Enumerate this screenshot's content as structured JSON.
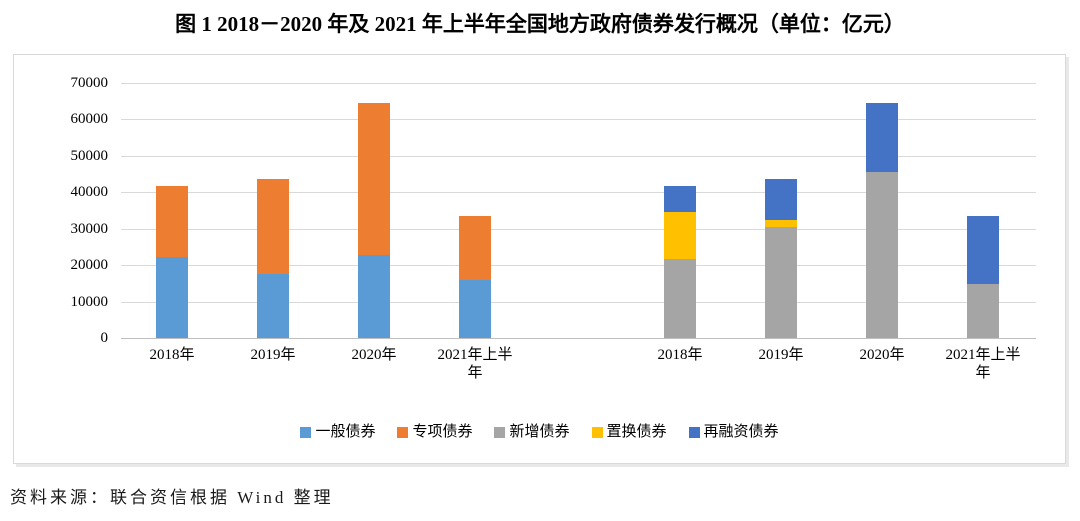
{
  "title": "图 1   2018－2020 年及 2021 年上半年全国地方政府债券发行概况（单位：亿元）",
  "source": "资料来源：联合资信根据 Wind 整理",
  "chart_data": {
    "type": "bar",
    "stacked": true,
    "unit": "亿元",
    "title": "2018－2020 年及 2021 年上半年全国地方政府债券发行概况",
    "xlabel": "",
    "ylabel": "",
    "ylim": [
      0,
      70000
    ],
    "yticks": [
      0,
      10000,
      20000,
      30000,
      40000,
      50000,
      60000,
      70000
    ],
    "grid": true,
    "legend_position": "bottom",
    "categories": [
      "2018年",
      "2019年",
      "2020年",
      "2021年上半年"
    ],
    "groups": [
      {
        "series": [
          {
            "name": "一般债券",
            "color": "#5B9BD5",
            "values": [
              22200,
              17700,
              22900,
              15800
            ]
          },
          {
            "name": "专项债券",
            "color": "#ED7D31",
            "values": [
              19500,
              25900,
              41500,
              17600
            ]
          }
        ]
      },
      {
        "series": [
          {
            "name": "新增债券",
            "color": "#A5A5A5",
            "values": [
              21800,
              30500,
              45600,
              14800
            ]
          },
          {
            "name": "置换债券",
            "color": "#FFC000",
            "values": [
              12900,
              1800,
              0,
              0
            ]
          },
          {
            "name": "再融资债券",
            "color": "#4472C4",
            "values": [
              7000,
              11300,
              18800,
              18600
            ]
          }
        ]
      }
    ],
    "legend": [
      {
        "label": "一般债券",
        "color": "#5B9BD5"
      },
      {
        "label": "专项债券",
        "color": "#ED7D31"
      },
      {
        "label": "新增债券",
        "color": "#A5A5A5"
      },
      {
        "label": "置换债券",
        "color": "#FFC000"
      },
      {
        "label": "再融资债券",
        "color": "#4472C4"
      }
    ]
  }
}
